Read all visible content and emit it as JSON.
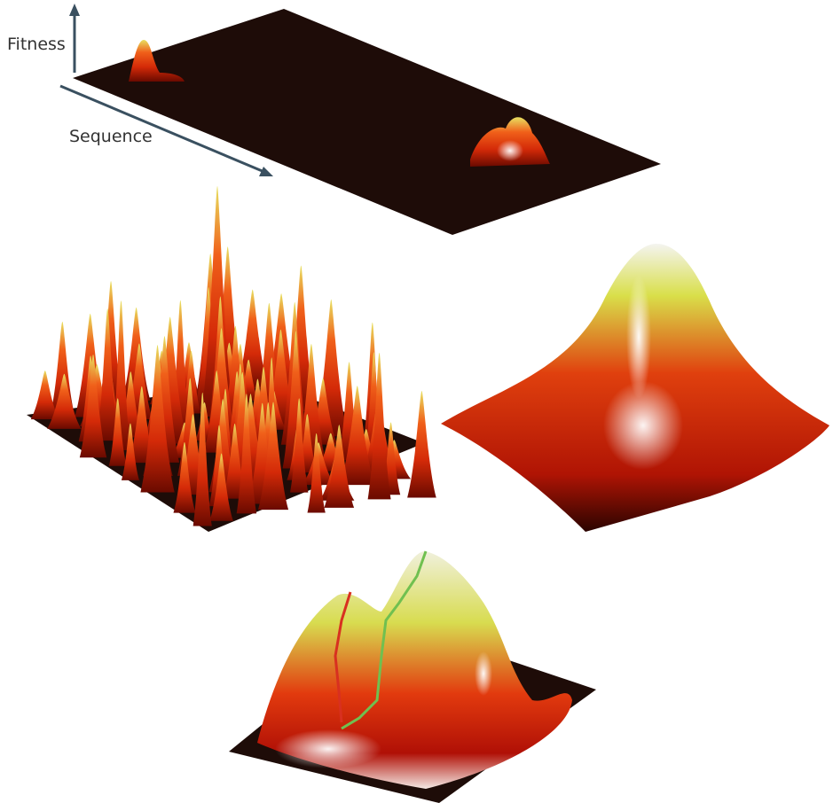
{
  "axes": {
    "y_label": "Fitness",
    "x_label": "Sequence"
  }
}
